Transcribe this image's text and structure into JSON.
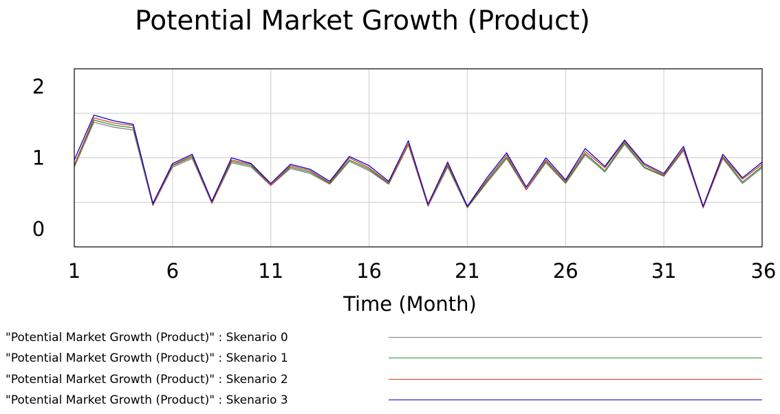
{
  "chart_data": {
    "type": "line",
    "title": "Potential Market Growth (Product)",
    "xlabel": "Time (Month)",
    "ylabel": "",
    "xlim": [
      1,
      36
    ],
    "ylim": [
      -0.25,
      2.25
    ],
    "x_ticks": [
      "1",
      "6",
      "11",
      "16",
      "21",
      "26",
      "31",
      "36"
    ],
    "x_tick_values": [
      1,
      6,
      11,
      16,
      21,
      26,
      31,
      36
    ],
    "y_ticks": [
      "0",
      "1",
      "2"
    ],
    "y_tick_values": [
      0,
      1,
      2
    ],
    "y_gridlines": [
      0.375,
      1.0,
      1.625
    ],
    "grid": true,
    "legend_position": "bottom",
    "x": [
      1,
      2,
      3,
      4,
      5,
      6,
      7,
      8,
      9,
      10,
      11,
      12,
      13,
      14,
      15,
      16,
      17,
      18,
      19,
      20,
      21,
      22,
      23,
      24,
      25,
      26,
      27,
      28,
      29,
      30,
      31,
      32,
      33,
      34,
      35,
      36
    ],
    "series": [
      {
        "name": "\"Potential Market Growth (Product)\" : Skenario 3",
        "color": "#0000cc",
        "values": [
          0.97,
          1.6,
          1.52,
          1.47,
          0.36,
          0.92,
          1.05,
          0.39,
          1.0,
          0.92,
          0.64,
          0.91,
          0.84,
          0.67,
          1.02,
          0.89,
          0.67,
          1.24,
          0.35,
          0.94,
          0.32,
          0.72,
          1.07,
          0.59,
          1.0,
          0.69,
          1.13,
          0.88,
          1.25,
          0.92,
          0.78,
          1.16,
          0.32,
          1.05,
          0.72,
          0.94
        ]
      },
      {
        "name": "\"Potential Market Growth (Product)\" : Skenario 2",
        "color": "#e0391f",
        "values": [
          0.9,
          1.56,
          1.49,
          1.45,
          0.34,
          0.9,
          1.03,
          0.37,
          0.97,
          0.91,
          0.62,
          0.89,
          0.82,
          0.65,
          1.0,
          0.86,
          0.65,
          1.2,
          0.33,
          0.91,
          0.31,
          0.69,
          1.04,
          0.56,
          0.97,
          0.67,
          1.09,
          0.86,
          1.23,
          0.9,
          0.76,
          1.13,
          0.3,
          1.02,
          0.7,
          0.91
        ]
      },
      {
        "name": "\"Potential Market Growth (Product)\" : Skenario 1",
        "color": "#2e8b2e",
        "values": [
          0.89,
          1.53,
          1.46,
          1.42,
          0.34,
          0.89,
          1.01,
          0.37,
          0.95,
          0.89,
          0.62,
          0.87,
          0.8,
          0.64,
          0.97,
          0.84,
          0.64,
          1.19,
          0.33,
          0.89,
          0.3,
          0.67,
          1.01,
          0.56,
          0.95,
          0.65,
          1.06,
          0.82,
          1.21,
          0.87,
          0.75,
          1.12,
          0.3,
          1.01,
          0.66,
          0.88
        ]
      },
      {
        "name": "\"Potential Market Growth (Product)\" : Skenario 0",
        "color": "#808080",
        "values": [
          0.87,
          1.5,
          1.43,
          1.39,
          0.33,
          0.87,
          0.99,
          0.36,
          0.93,
          0.87,
          0.61,
          0.85,
          0.78,
          0.63,
          0.95,
          0.82,
          0.63,
          1.18,
          0.32,
          0.87,
          0.3,
          0.65,
          0.99,
          0.55,
          0.93,
          0.64,
          1.04,
          0.8,
          1.19,
          0.86,
          0.74,
          1.1,
          0.3,
          0.99,
          0.64,
          0.86
        ]
      }
    ]
  }
}
